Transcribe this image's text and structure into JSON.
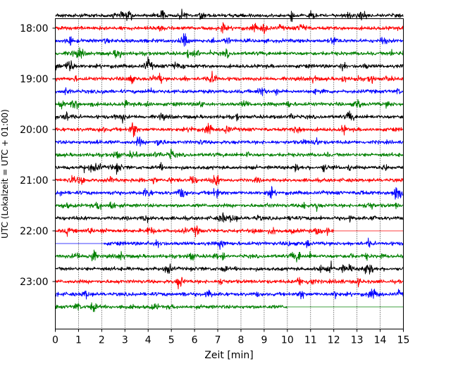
{
  "chart_data": {
    "type": "line",
    "title": "",
    "xlabel": "Zeit  [min]",
    "ylabel": "UTC (Lokalzeit = UTC + 01:00)",
    "xlim": [
      0,
      15
    ],
    "x_ticks": [
      "0",
      "1",
      "2",
      "3",
      "4",
      "5",
      "6",
      "7",
      "8",
      "9",
      "10",
      "11",
      "12",
      "13",
      "14",
      "15"
    ],
    "y_ticks": [
      "18:00",
      "19:00",
      "20:00",
      "21:00",
      "22:00",
      "23:00"
    ],
    "grid": "vertical-dotted",
    "color_cycle": [
      "#000000",
      "#ff0000",
      "#0000ff",
      "#008000"
    ],
    "traces": [
      {
        "start": "17:45",
        "end_min": 15
      },
      {
        "start": "18:00",
        "end_min": 15
      },
      {
        "start": "18:15",
        "end_min": 15
      },
      {
        "start": "18:30",
        "end_min": 15
      },
      {
        "start": "18:45",
        "end_min": 15
      },
      {
        "start": "19:00",
        "end_min": 15
      },
      {
        "start": "19:15",
        "end_min": 15
      },
      {
        "start": "19:30",
        "end_min": 15
      },
      {
        "start": "19:45",
        "end_min": 15
      },
      {
        "start": "20:00",
        "end_min": 15
      },
      {
        "start": "20:15",
        "end_min": 15
      },
      {
        "start": "20:30",
        "end_min": 15
      },
      {
        "start": "20:45",
        "end_min": 15
      },
      {
        "start": "21:00",
        "end_min": 15
      },
      {
        "start": "21:15",
        "end_min": 15
      },
      {
        "start": "21:30",
        "end_min": 15
      },
      {
        "start": "21:45",
        "end_min": 15
      },
      {
        "start": "22:00",
        "end_min": 12
      },
      {
        "start": "22:15",
        "start_min": 2.1,
        "end_min": 15
      },
      {
        "start": "22:30",
        "end_min": 15
      },
      {
        "start": "22:45",
        "end_min": 15
      },
      {
        "start": "23:00",
        "end_min": 15
      },
      {
        "start": "23:15",
        "end_min": 15
      },
      {
        "start": "23:30",
        "end_min": 10
      }
    ]
  }
}
